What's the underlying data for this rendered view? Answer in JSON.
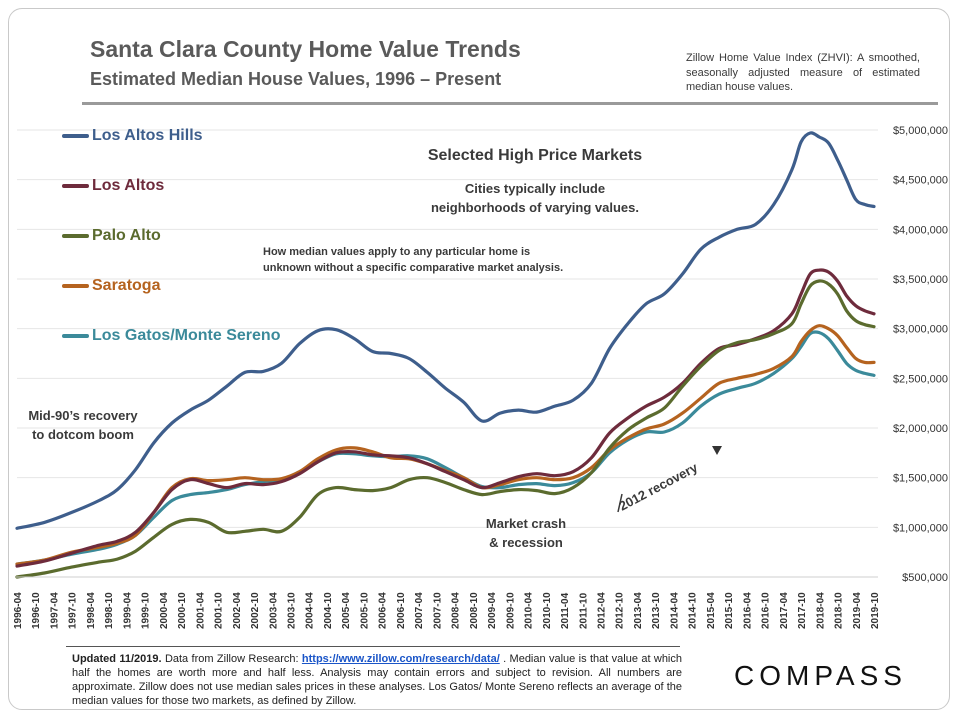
{
  "header": {
    "title": "Santa Clara County Home Value Trends",
    "subtitle": "Estimated Median House Values, 1996 – Present",
    "zhvi_note": "Zillow Home Value Index (ZHVI): A smoothed, seasonally adjusted measure of estimated median house values."
  },
  "annotations": {
    "selected": "Selected High Price Markets",
    "cities_line1": "Cities typically include",
    "cities_line2": "neighborhoods of varying values.",
    "median_line1": "How median values apply to any particular home is",
    "median_line2": "unknown without a specific comparative market analysis.",
    "mid90_line1": "Mid-90’s recovery",
    "mid90_line2": "to dotcom boom",
    "crash_line1": "Market crash",
    "crash_line2": "& recession",
    "recovery": "2012 recovery"
  },
  "footer": {
    "updated": "Updated 11/2019.",
    "text1": " Data from Zillow Research: ",
    "link": "https://www.zillow.com/research/data/",
    "text2": " . Median value is that value at which half the homes are worth more and half less. Analysis may contain errors and subject to revision. All numbers are approximate. Zillow does not use median sales prices in these analyses. Los Gatos/ Monte Sereno reflects an average of the median values for those two markets, as defined by Zillow."
  },
  "brand": {
    "name": "COMPASS"
  },
  "chart_data": {
    "type": "line",
    "title": "Selected High Price Markets",
    "xlabel": "",
    "ylabel": "",
    "ylim": [
      500000,
      5000000
    ],
    "y_ticks": [
      "$500,000",
      "$1,000,000",
      "$1,500,000",
      "$2,000,000",
      "$2,500,000",
      "$3,000,000",
      "$3,500,000",
      "$4,000,000",
      "$4,500,000",
      "$5,000,000"
    ],
    "x_range": [
      1996.25,
      2019.75
    ],
    "x_tick_labels": [
      "1996-04",
      "1996-10",
      "1997-04",
      "1997-10",
      "1998-04",
      "1998-10",
      "1999-04",
      "1999-10",
      "2000-04",
      "2000-10",
      "2001-04",
      "2001-10",
      "2002-04",
      "2002-10",
      "2003-04",
      "2003-10",
      "2004-04",
      "2004-10",
      "2005-04",
      "2005-10",
      "2006-04",
      "2006-10",
      "2007-04",
      "2007-10",
      "2008-04",
      "2008-10",
      "2009-04",
      "2009-10",
      "2010-04",
      "2010-10",
      "2011-04",
      "2011-10",
      "2012-04",
      "2012-10",
      "2013-04",
      "2013-10",
      "2014-04",
      "2014-10",
      "2015-04",
      "2015-10",
      "2016-04",
      "2016-10",
      "2017-04",
      "2017-10",
      "2018-04",
      "2018-10",
      "2019-04",
      "2019-10"
    ],
    "series": [
      {
        "name": "Los Altos Hills",
        "color": "#3e5e8c",
        "points": [
          [
            1996.25,
            990000
          ],
          [
            1997.0,
            1050000
          ],
          [
            1997.75,
            1150000
          ],
          [
            1998.5,
            1270000
          ],
          [
            1999.0,
            1380000
          ],
          [
            1999.5,
            1580000
          ],
          [
            2000.0,
            1850000
          ],
          [
            2000.5,
            2050000
          ],
          [
            2001.0,
            2180000
          ],
          [
            2001.5,
            2280000
          ],
          [
            2002.0,
            2420000
          ],
          [
            2002.5,
            2560000
          ],
          [
            2003.0,
            2570000
          ],
          [
            2003.5,
            2650000
          ],
          [
            2004.0,
            2850000
          ],
          [
            2004.5,
            2980000
          ],
          [
            2005.0,
            2990000
          ],
          [
            2005.5,
            2900000
          ],
          [
            2006.0,
            2770000
          ],
          [
            2006.5,
            2750000
          ],
          [
            2007.0,
            2700000
          ],
          [
            2007.5,
            2560000
          ],
          [
            2008.0,
            2400000
          ],
          [
            2008.5,
            2260000
          ],
          [
            2009.0,
            2070000
          ],
          [
            2009.5,
            2150000
          ],
          [
            2010.0,
            2180000
          ],
          [
            2010.5,
            2160000
          ],
          [
            2011.0,
            2220000
          ],
          [
            2011.5,
            2280000
          ],
          [
            2012.0,
            2450000
          ],
          [
            2012.5,
            2800000
          ],
          [
            2013.0,
            3050000
          ],
          [
            2013.5,
            3250000
          ],
          [
            2014.0,
            3350000
          ],
          [
            2014.5,
            3550000
          ],
          [
            2015.0,
            3800000
          ],
          [
            2015.5,
            3920000
          ],
          [
            2016.0,
            4000000
          ],
          [
            2016.5,
            4050000
          ],
          [
            2017.0,
            4250000
          ],
          [
            2017.5,
            4600000
          ],
          [
            2017.75,
            4880000
          ],
          [
            2018.0,
            4970000
          ],
          [
            2018.25,
            4930000
          ],
          [
            2018.5,
            4870000
          ],
          [
            2018.75,
            4700000
          ],
          [
            2019.0,
            4500000
          ],
          [
            2019.25,
            4300000
          ],
          [
            2019.5,
            4250000
          ],
          [
            2019.75,
            4230000
          ]
        ]
      },
      {
        "name": "Los Altos",
        "color": "#6e2b3c",
        "points": [
          [
            1996.25,
            610000
          ],
          [
            1997.0,
            660000
          ],
          [
            1997.75,
            740000
          ],
          [
            1998.5,
            820000
          ],
          [
            1999.0,
            860000
          ],
          [
            1999.5,
            950000
          ],
          [
            2000.0,
            1150000
          ],
          [
            2000.5,
            1380000
          ],
          [
            2001.0,
            1480000
          ],
          [
            2001.5,
            1440000
          ],
          [
            2002.0,
            1400000
          ],
          [
            2002.5,
            1440000
          ],
          [
            2003.0,
            1430000
          ],
          [
            2003.5,
            1460000
          ],
          [
            2004.0,
            1540000
          ],
          [
            2004.5,
            1660000
          ],
          [
            2005.0,
            1750000
          ],
          [
            2005.5,
            1760000
          ],
          [
            2006.0,
            1730000
          ],
          [
            2006.5,
            1720000
          ],
          [
            2007.0,
            1700000
          ],
          [
            2007.5,
            1640000
          ],
          [
            2008.0,
            1560000
          ],
          [
            2008.5,
            1480000
          ],
          [
            2009.0,
            1400000
          ],
          [
            2009.5,
            1450000
          ],
          [
            2010.0,
            1510000
          ],
          [
            2010.5,
            1540000
          ],
          [
            2011.0,
            1520000
          ],
          [
            2011.5,
            1560000
          ],
          [
            2012.0,
            1700000
          ],
          [
            2012.5,
            1950000
          ],
          [
            2013.0,
            2100000
          ],
          [
            2013.5,
            2220000
          ],
          [
            2014.0,
            2310000
          ],
          [
            2014.5,
            2450000
          ],
          [
            2015.0,
            2650000
          ],
          [
            2015.5,
            2800000
          ],
          [
            2016.0,
            2840000
          ],
          [
            2016.5,
            2900000
          ],
          [
            2017.0,
            2980000
          ],
          [
            2017.5,
            3150000
          ],
          [
            2017.75,
            3350000
          ],
          [
            2018.0,
            3550000
          ],
          [
            2018.25,
            3590000
          ],
          [
            2018.5,
            3570000
          ],
          [
            2018.75,
            3480000
          ],
          [
            2019.0,
            3330000
          ],
          [
            2019.25,
            3230000
          ],
          [
            2019.5,
            3180000
          ],
          [
            2019.75,
            3150000
          ]
        ]
      },
      {
        "name": "Palo Alto",
        "color": "#5b6b2e",
        "points": [
          [
            1996.25,
            500000
          ],
          [
            1997.0,
            540000
          ],
          [
            1997.75,
            600000
          ],
          [
            1998.5,
            650000
          ],
          [
            1999.0,
            680000
          ],
          [
            1999.5,
            760000
          ],
          [
            2000.0,
            900000
          ],
          [
            2000.5,
            1030000
          ],
          [
            2001.0,
            1080000
          ],
          [
            2001.5,
            1050000
          ],
          [
            2002.0,
            950000
          ],
          [
            2002.5,
            960000
          ],
          [
            2003.0,
            980000
          ],
          [
            2003.5,
            960000
          ],
          [
            2004.0,
            1100000
          ],
          [
            2004.5,
            1330000
          ],
          [
            2005.0,
            1400000
          ],
          [
            2005.5,
            1380000
          ],
          [
            2006.0,
            1370000
          ],
          [
            2006.5,
            1400000
          ],
          [
            2007.0,
            1480000
          ],
          [
            2007.5,
            1500000
          ],
          [
            2008.0,
            1450000
          ],
          [
            2008.5,
            1380000
          ],
          [
            2009.0,
            1330000
          ],
          [
            2009.5,
            1360000
          ],
          [
            2010.0,
            1380000
          ],
          [
            2010.5,
            1370000
          ],
          [
            2011.0,
            1340000
          ],
          [
            2011.5,
            1400000
          ],
          [
            2012.0,
            1550000
          ],
          [
            2012.5,
            1800000
          ],
          [
            2013.0,
            1980000
          ],
          [
            2013.5,
            2100000
          ],
          [
            2014.0,
            2200000
          ],
          [
            2014.5,
            2420000
          ],
          [
            2015.0,
            2620000
          ],
          [
            2015.5,
            2780000
          ],
          [
            2016.0,
            2860000
          ],
          [
            2016.5,
            2890000
          ],
          [
            2017.0,
            2950000
          ],
          [
            2017.5,
            3050000
          ],
          [
            2017.75,
            3250000
          ],
          [
            2018.0,
            3430000
          ],
          [
            2018.25,
            3480000
          ],
          [
            2018.5,
            3450000
          ],
          [
            2018.75,
            3350000
          ],
          [
            2019.0,
            3180000
          ],
          [
            2019.25,
            3080000
          ],
          [
            2019.5,
            3040000
          ],
          [
            2019.75,
            3020000
          ]
        ]
      },
      {
        "name": "Saratoga",
        "color": "#b5631f",
        "points": [
          [
            1996.25,
            630000
          ],
          [
            1997.0,
            670000
          ],
          [
            1997.75,
            750000
          ],
          [
            1998.5,
            800000
          ],
          [
            1999.0,
            840000
          ],
          [
            1999.5,
            920000
          ],
          [
            2000.0,
            1150000
          ],
          [
            2000.5,
            1400000
          ],
          [
            2001.0,
            1490000
          ],
          [
            2001.5,
            1470000
          ],
          [
            2002.0,
            1480000
          ],
          [
            2002.5,
            1500000
          ],
          [
            2003.0,
            1480000
          ],
          [
            2003.5,
            1490000
          ],
          [
            2004.0,
            1560000
          ],
          [
            2004.5,
            1690000
          ],
          [
            2005.0,
            1780000
          ],
          [
            2005.5,
            1800000
          ],
          [
            2006.0,
            1760000
          ],
          [
            2006.5,
            1700000
          ],
          [
            2007.0,
            1690000
          ],
          [
            2007.5,
            1640000
          ],
          [
            2008.0,
            1570000
          ],
          [
            2008.5,
            1500000
          ],
          [
            2009.0,
            1400000
          ],
          [
            2009.5,
            1430000
          ],
          [
            2010.0,
            1480000
          ],
          [
            2010.5,
            1500000
          ],
          [
            2011.0,
            1480000
          ],
          [
            2011.5,
            1500000
          ],
          [
            2012.0,
            1600000
          ],
          [
            2012.5,
            1780000
          ],
          [
            2013.0,
            1900000
          ],
          [
            2013.5,
            1990000
          ],
          [
            2014.0,
            2040000
          ],
          [
            2014.5,
            2150000
          ],
          [
            2015.0,
            2300000
          ],
          [
            2015.5,
            2450000
          ],
          [
            2016.0,
            2500000
          ],
          [
            2016.5,
            2540000
          ],
          [
            2017.0,
            2600000
          ],
          [
            2017.5,
            2720000
          ],
          [
            2017.75,
            2870000
          ],
          [
            2018.0,
            2980000
          ],
          [
            2018.25,
            3030000
          ],
          [
            2018.5,
            3000000
          ],
          [
            2018.75,
            2930000
          ],
          [
            2019.0,
            2810000
          ],
          [
            2019.25,
            2700000
          ],
          [
            2019.5,
            2660000
          ],
          [
            2019.75,
            2660000
          ]
        ]
      },
      {
        "name": "Los Gatos/Monte Sereno",
        "color": "#3b8a9a",
        "points": [
          [
            1996.25,
            630000
          ],
          [
            1997.0,
            670000
          ],
          [
            1997.75,
            730000
          ],
          [
            1998.5,
            780000
          ],
          [
            1999.0,
            830000
          ],
          [
            1999.5,
            920000
          ],
          [
            2000.0,
            1100000
          ],
          [
            2000.5,
            1270000
          ],
          [
            2001.0,
            1330000
          ],
          [
            2001.5,
            1350000
          ],
          [
            2002.0,
            1380000
          ],
          [
            2002.5,
            1430000
          ],
          [
            2003.0,
            1460000
          ],
          [
            2003.5,
            1480000
          ],
          [
            2004.0,
            1560000
          ],
          [
            2004.5,
            1660000
          ],
          [
            2005.0,
            1740000
          ],
          [
            2005.5,
            1740000
          ],
          [
            2006.0,
            1720000
          ],
          [
            2006.5,
            1710000
          ],
          [
            2007.0,
            1720000
          ],
          [
            2007.5,
            1690000
          ],
          [
            2008.0,
            1600000
          ],
          [
            2008.5,
            1500000
          ],
          [
            2009.0,
            1410000
          ],
          [
            2009.5,
            1400000
          ],
          [
            2010.0,
            1430000
          ],
          [
            2010.5,
            1440000
          ],
          [
            2011.0,
            1420000
          ],
          [
            2011.5,
            1450000
          ],
          [
            2012.0,
            1550000
          ],
          [
            2012.5,
            1750000
          ],
          [
            2013.0,
            1880000
          ],
          [
            2013.5,
            1960000
          ],
          [
            2014.0,
            1960000
          ],
          [
            2014.5,
            2050000
          ],
          [
            2015.0,
            2220000
          ],
          [
            2015.5,
            2340000
          ],
          [
            2016.0,
            2400000
          ],
          [
            2016.5,
            2450000
          ],
          [
            2017.0,
            2550000
          ],
          [
            2017.5,
            2700000
          ],
          [
            2017.75,
            2820000
          ],
          [
            2018.0,
            2950000
          ],
          [
            2018.25,
            2960000
          ],
          [
            2018.5,
            2900000
          ],
          [
            2018.75,
            2780000
          ],
          [
            2019.0,
            2650000
          ],
          [
            2019.25,
            2580000
          ],
          [
            2019.5,
            2550000
          ],
          [
            2019.75,
            2530000
          ]
        ]
      }
    ]
  }
}
